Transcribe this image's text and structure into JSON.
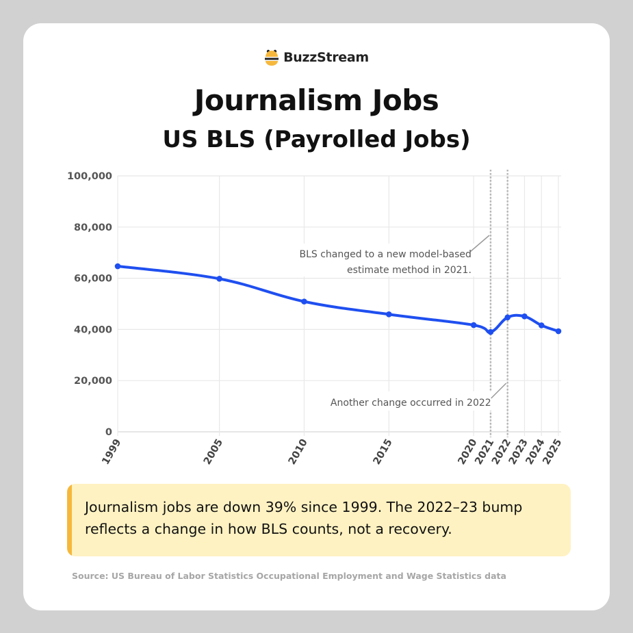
{
  "brand": {
    "name": "BuzzStream",
    "logo_icon": "bee-icon"
  },
  "callout": {
    "text": "Journalism jobs are down 39% since 1999. The 2022–23 bump reflects a change in how BLS counts, not a recovery.",
    "accent_color": "#f5b83d",
    "background_color": "#fff2c2"
  },
  "source": "Source: US Bureau of Labor Statistics Occupational Employment and Wage Statistics data",
  "chart_data": {
    "type": "line",
    "title": "Journalism Jobs",
    "subtitle": "US BLS (Payrolled Jobs)",
    "xlabel": "",
    "ylabel": "",
    "x": [
      1999,
      2005,
      2010,
      2015,
      2020,
      2021,
      2022,
      2023,
      2024,
      2025
    ],
    "xticks": [
      "1999",
      "2005",
      "2010",
      "2015",
      "2020",
      "2021",
      "2022",
      "2023",
      "2024",
      "2025"
    ],
    "series": [
      {
        "values": [
          64700,
          59800,
          50900,
          45900,
          41700,
          39000,
          44700,
          45100,
          41600,
          39300
        ],
        "color": "#1f4ff0"
      }
    ],
    "ylim": [
      0,
      100000
    ],
    "yticks": [
      0,
      20000,
      40000,
      60000,
      80000,
      100000
    ],
    "ytick_labels": [
      "0",
      "20,000",
      "40,000",
      "60,000",
      "80,000",
      "100,000"
    ],
    "grid": true,
    "annotations": [
      {
        "x": 2021,
        "text_lines": [
          "BLS changed to a new model-based",
          "estimate method in 2021."
        ]
      },
      {
        "x": 2022,
        "text_lines": [
          "Another change occurred in 2022"
        ]
      }
    ]
  }
}
